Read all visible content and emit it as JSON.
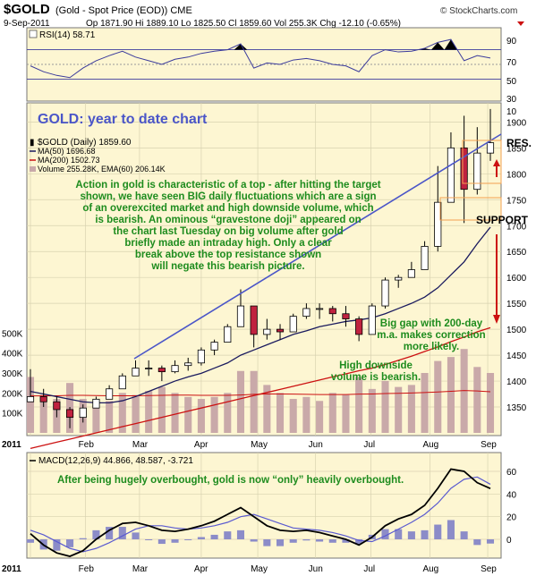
{
  "header": {
    "symbol": "$GOLD",
    "name": "(Gold - Spot Price (EOD)) CME",
    "date": "9-Sep-2011",
    "quote": "Op 1871.90  Hi 1889.10  Lo 1825.50  Cl 1859.60  Vol 255.3K  Chg -12.10 (-0.65%)",
    "change_icon": "down-triangle-icon",
    "source": "© StockCharts.com"
  },
  "colors": {
    "panel_bg": "#fdf6d2",
    "grid": "#d8d2b0",
    "trendline": "#4b56c8",
    "annotation_green": "#1e8c1e",
    "title_blue": "#4b56c8",
    "red": "#cc1111",
    "up_candle": "#ffffff",
    "down_candle": "#c0223f",
    "ma50": "#1a1a5e",
    "ma200": "#cc1111",
    "volume_bar": "#c9a9a9",
    "volume_ema": "#cc1111",
    "rsi_fill": "#000000",
    "rsi_line": "#3b3b9c",
    "macd_line": "#000000",
    "macd_signal": "#5a5ad0",
    "macd_hist": "#8c8cc8"
  },
  "rsi_panel": {
    "label": "RSI(14) 58.71",
    "ticks": [
      "90",
      "70",
      "50",
      "30",
      "10"
    ]
  },
  "price_panel": {
    "title": "GOLD: year to date chart",
    "legend": [
      {
        "label": "$GOLD (Daily) 1859.60"
      },
      {
        "label": "MA(50) 1696.68"
      },
      {
        "label": "MA(200) 1502.73"
      },
      {
        "label": "Volume 255.28K, EMA(60) 206.14K"
      }
    ],
    "price_ticks": [
      "1900",
      "1850",
      "1800",
      "1750",
      "1700",
      "1650",
      "1600",
      "1550",
      "1500",
      "1450",
      "1400",
      "1350"
    ],
    "volume_ticks": [
      "500K",
      "400K",
      "300K",
      "200K",
      "100K"
    ],
    "month_labels": [
      "2011",
      "Feb",
      "Mar",
      "Apr",
      "May",
      "Jun",
      "Jul",
      "Aug",
      "Sep"
    ],
    "annotation_main": [
      "Action in gold is characteristic of a top - after hitting the target",
      "shown, we have seen BIG daily fluctuations which are a sign",
      "of an overexcited market and high downside volume, which",
      "is bearish. An ominous “gravestone doji” appeared on",
      "the chart last Tuesday on big volume after gold",
      "briefly made an intraday high. Only a clear",
      "break above the top resistance shown",
      "will negate this bearish picture."
    ],
    "label_res": "RES.",
    "label_support": "SUPPORT",
    "annotation_gap": [
      "Big gap with 200-day",
      "m.a. makes correction",
      "more likely."
    ],
    "annotation_volume": [
      "High downside",
      "volume is bearish."
    ]
  },
  "macd_panel": {
    "label": "MACD(12,26,9) 44.866, 48.587, -3.721",
    "annotation": "After being hugely overbought, gold is now “only” heavily overbought.",
    "ticks": [
      "60",
      "40",
      "20",
      "0"
    ],
    "month_labels": [
      "2011",
      "Feb",
      "Mar",
      "Apr",
      "May",
      "Jun",
      "Jul",
      "Aug",
      "Sep"
    ]
  },
  "chart_data": [
    {
      "type": "candlestick",
      "title": "GOLD: year to date chart",
      "x": [
        "2011-01-03",
        "2011-01-10",
        "2011-01-17",
        "2011-01-24",
        "2011-01-31",
        "2011-02-07",
        "2011-02-14",
        "2011-02-21",
        "2011-02-28",
        "2011-03-07",
        "2011-03-14",
        "2011-03-21",
        "2011-03-28",
        "2011-04-04",
        "2011-04-11",
        "2011-04-18",
        "2011-04-25",
        "2011-05-02",
        "2011-05-09",
        "2011-05-16",
        "2011-05-23",
        "2011-05-30",
        "2011-06-06",
        "2011-06-13",
        "2011-06-20",
        "2011-06-27",
        "2011-07-04",
        "2011-07-11",
        "2011-07-18",
        "2011-07-25",
        "2011-08-01",
        "2011-08-08",
        "2011-08-15",
        "2011-08-22",
        "2011-08-29",
        "2011-09-05"
      ],
      "close": [
        1370,
        1360,
        1345,
        1330,
        1348,
        1365,
        1385,
        1410,
        1425,
        1425,
        1418,
        1430,
        1435,
        1460,
        1475,
        1505,
        1545,
        1490,
        1500,
        1495,
        1525,
        1540,
        1540,
        1530,
        1520,
        1490,
        1545,
        1595,
        1600,
        1615,
        1660,
        1745,
        1850,
        1770,
        1840,
        1860
      ],
      "high": [
        1423,
        1385,
        1370,
        1350,
        1355,
        1370,
        1392,
        1415,
        1440,
        1440,
        1430,
        1440,
        1445,
        1465,
        1480,
        1510,
        1577,
        1545,
        1520,
        1510,
        1530,
        1550,
        1550,
        1545,
        1545,
        1525,
        1550,
        1600,
        1605,
        1630,
        1670,
        1815,
        1880,
        1912,
        1890,
        1925
      ],
      "low": [
        1365,
        1350,
        1330,
        1309,
        1320,
        1350,
        1370,
        1395,
        1410,
        1410,
        1400,
        1415,
        1420,
        1430,
        1450,
        1480,
        1510,
        1465,
        1480,
        1480,
        1500,
        1520,
        1520,
        1515,
        1505,
        1477,
        1500,
        1540,
        1580,
        1600,
        1620,
        1650,
        1760,
        1705,
        1760,
        1825
      ],
      "ma50": [
        1380,
        1375,
        1370,
        1365,
        1360,
        1358,
        1358,
        1362,
        1370,
        1380,
        1390,
        1400,
        1408,
        1415,
        1425,
        1435,
        1450,
        1460,
        1470,
        1480,
        1490,
        1497,
        1505,
        1510,
        1515,
        1518,
        1522,
        1530,
        1540,
        1550,
        1562,
        1580,
        1605,
        1630,
        1665,
        1697
      ],
      "ma200": [
        1270,
        1276,
        1282,
        1288,
        1294,
        1300,
        1306,
        1312,
        1318,
        1324,
        1330,
        1336,
        1342,
        1348,
        1354,
        1360,
        1366,
        1372,
        1378,
        1384,
        1390,
        1396,
        1402,
        1408,
        1414,
        1420,
        1425,
        1432,
        1440,
        1448,
        1457,
        1466,
        1476,
        1485,
        1495,
        1503
      ],
      "volume_k": [
        280,
        190,
        170,
        250,
        170,
        140,
        160,
        200,
        190,
        210,
        230,
        200,
        180,
        170,
        180,
        200,
        310,
        310,
        240,
        200,
        170,
        180,
        160,
        200,
        190,
        280,
        220,
        260,
        230,
        240,
        300,
        360,
        380,
        420,
        330,
        300
      ],
      "volume_ema_k": [
        185,
        185,
        186,
        188,
        188,
        187,
        186,
        186,
        186,
        187,
        188,
        189,
        189,
        188,
        188,
        188,
        190,
        193,
        195,
        195,
        194,
        193,
        192,
        192,
        192,
        194,
        195,
        197,
        198,
        200,
        202,
        205,
        208,
        212,
        210,
        206
      ],
      "ylim": [
        1300,
        1930
      ],
      "volume_ylim": [
        0,
        600
      ],
      "annotations": [
        "RES.",
        "SUPPORT"
      ]
    },
    {
      "type": "line",
      "name": "RSI(14)",
      "x": [
        "2011-01-03",
        "2011-01-10",
        "2011-01-17",
        "2011-01-24",
        "2011-01-31",
        "2011-02-07",
        "2011-02-14",
        "2011-02-21",
        "2011-02-28",
        "2011-03-07",
        "2011-03-14",
        "2011-03-21",
        "2011-03-28",
        "2011-04-04",
        "2011-04-11",
        "2011-04-18",
        "2011-04-25",
        "2011-05-02",
        "2011-05-09",
        "2011-05-16",
        "2011-05-23",
        "2011-05-30",
        "2011-06-06",
        "2011-06-13",
        "2011-06-20",
        "2011-06-27",
        "2011-07-04",
        "2011-07-11",
        "2011-07-18",
        "2011-07-25",
        "2011-08-01",
        "2011-08-08",
        "2011-08-15",
        "2011-08-22",
        "2011-08-29",
        "2011-09-05"
      ],
      "values": [
        48,
        40,
        35,
        32,
        45,
        55,
        62,
        68,
        60,
        55,
        50,
        57,
        60,
        65,
        68,
        70,
        78,
        45,
        52,
        50,
        56,
        58,
        55,
        50,
        48,
        40,
        62,
        70,
        67,
        68,
        72,
        80,
        84,
        55,
        62,
        58.71
      ],
      "ylim": [
        0,
        100
      ],
      "reference_lines": [
        70,
        50,
        30
      ]
    },
    {
      "type": "line",
      "name": "MACD(12,26,9)",
      "x": [
        "2011-01-03",
        "2011-01-10",
        "2011-01-17",
        "2011-01-24",
        "2011-01-31",
        "2011-02-07",
        "2011-02-14",
        "2011-02-21",
        "2011-02-28",
        "2011-03-07",
        "2011-03-14",
        "2011-03-21",
        "2011-03-28",
        "2011-04-04",
        "2011-04-11",
        "2011-04-18",
        "2011-04-25",
        "2011-05-02",
        "2011-05-09",
        "2011-05-16",
        "2011-05-23",
        "2011-05-30",
        "2011-06-06",
        "2011-06-13",
        "2011-06-20",
        "2011-06-27",
        "2011-07-04",
        "2011-07-11",
        "2011-07-18",
        "2011-07-25",
        "2011-08-01",
        "2011-08-08",
        "2011-08-15",
        "2011-08-22",
        "2011-08-29",
        "2011-09-05"
      ],
      "macd": [
        5,
        -5,
        -12,
        -15,
        -10,
        0,
        8,
        14,
        15,
        12,
        8,
        7,
        9,
        12,
        16,
        22,
        28,
        20,
        12,
        8,
        7,
        8,
        6,
        3,
        0,
        -5,
        2,
        12,
        18,
        22,
        30,
        45,
        62,
        60,
        50,
        44.866
      ],
      "signal": [
        8,
        4,
        -2,
        -8,
        -11,
        -8,
        -3,
        3,
        9,
        12,
        12,
        10,
        9,
        10,
        12,
        15,
        20,
        22,
        18,
        14,
        10,
        9,
        8,
        6,
        3,
        -1,
        -2,
        3,
        9,
        15,
        22,
        32,
        45,
        53,
        55,
        48.587
      ],
      "histogram": [
        -3,
        -9,
        -10,
        -7,
        1,
        8,
        11,
        11,
        6,
        0,
        -4,
        -3,
        0,
        2,
        4,
        7,
        8,
        -2,
        -6,
        -6,
        -3,
        -1,
        -2,
        -3,
        -3,
        -4,
        4,
        9,
        9,
        7,
        8,
        13,
        17,
        7,
        -5,
        -3.721
      ],
      "ylim": [
        -15,
        75
      ]
    }
  ]
}
